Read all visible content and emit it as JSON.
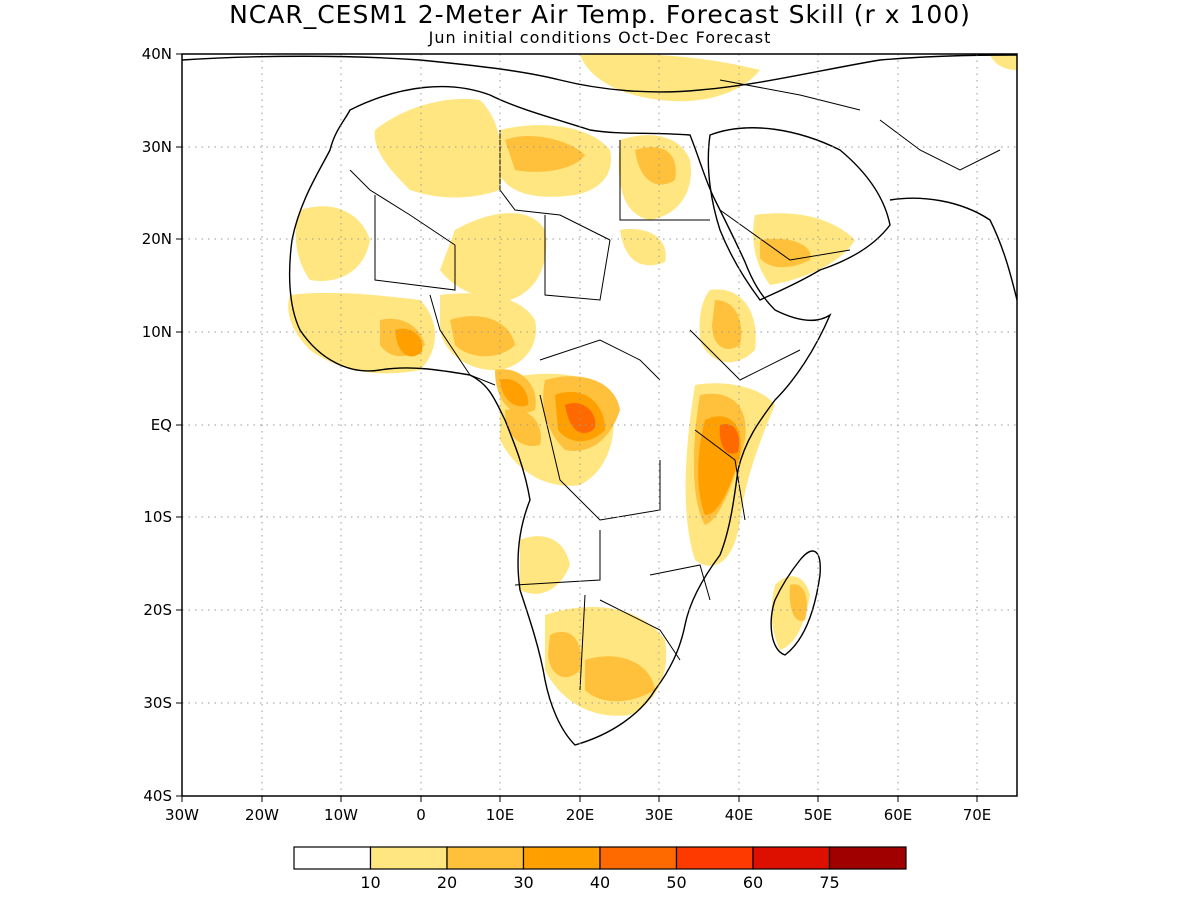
{
  "header": {
    "title": "NCAR_CESM1 2-Meter Air Temp. Forecast Skill (r x 100)",
    "subtitle": "Jun initial conditions  Oct-Dec Forecast"
  },
  "map": {
    "lon_range": [
      -30,
      75
    ],
    "lat_range": [
      -40,
      40
    ],
    "lon_ticks": [
      "30W",
      "20W",
      "10W",
      "0",
      "10E",
      "20E",
      "30E",
      "40E",
      "50E",
      "60E",
      "70E"
    ],
    "lat_ticks": [
      "40N",
      "30N",
      "20N",
      "10N",
      "EQ",
      "10S",
      "20S",
      "30S",
      "40S"
    ],
    "grid": "dotted"
  },
  "colorbar": {
    "labels": [
      "10",
      "20",
      "30",
      "40",
      "50",
      "60",
      "75"
    ],
    "colors": [
      "#ffffff",
      "#ffe680",
      "#ffc03c",
      "#ffa000",
      "#ff6a00",
      "#ff3a00",
      "#dd1000",
      "#a00000"
    ]
  }
}
